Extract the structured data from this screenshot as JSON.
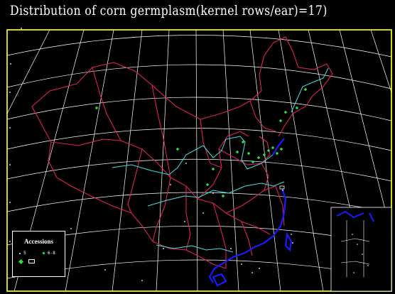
{
  "title": "Distribution  of corn  germplasm(kernel rows/ear)=17)",
  "legend": {
    "title": "Accessions",
    "items": [
      {
        "symbol": "white-dot-icon",
        "label": "5"
      },
      {
        "symbol": "green-small-diamond-icon",
        "label": "6-8"
      },
      {
        "symbol": "green-diamond-icon",
        "label": ""
      },
      {
        "symbol": "white-box-icon",
        "label": ""
      }
    ]
  },
  "colors": {
    "background": "#000000",
    "frame": "#f0f000",
    "graticule": "#ffffff",
    "boundaries": "#e0205a",
    "rivers": "#40e0e0",
    "coastline": "#1a1aff",
    "points": "#28e040"
  }
}
